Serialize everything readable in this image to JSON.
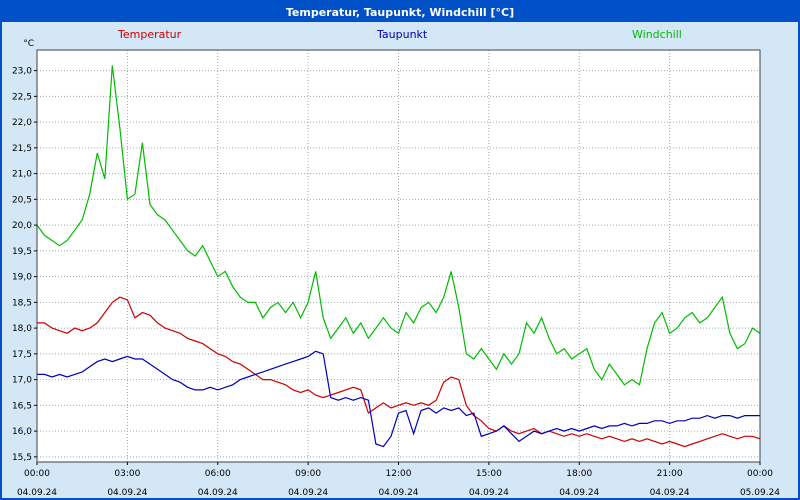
{
  "title": "Temperatur, Taupunkt, Windchill [°C]",
  "colors": {
    "titlebar": "#0050c8",
    "background": "#d3e7f7",
    "grid": "#9aa6b4",
    "temperatur": "#cc0000",
    "taupunkt": "#0000bb",
    "windchill": "#00bb00"
  },
  "chart_data": {
    "type": "line",
    "title": "Temperatur, Taupunkt, Windchill [°C]",
    "ylabel": "°C",
    "xlabel": "",
    "grid": true,
    "legend_position": "top",
    "ylim": [
      15.4,
      23.4
    ],
    "xlim_hours": [
      0,
      24
    ],
    "sample_interval_hours": 0.25,
    "y_ticks": [
      "23,0",
      "22,5",
      "22,0",
      "21,5",
      "21,0",
      "20,5",
      "20,0",
      "19,5",
      "19,0",
      "18,5",
      "18,0",
      "17,5",
      "17,0",
      "16,5",
      "16,0",
      "15,5"
    ],
    "x_ticks": [
      "00:00",
      "03:00",
      "06:00",
      "09:00",
      "12:00",
      "15:00",
      "18:00",
      "21:00",
      "00:00"
    ],
    "x_dates": [
      "04.09.24",
      "04.09.24",
      "04.09.24",
      "04.09.24",
      "04.09.24",
      "04.09.24",
      "04.09.24",
      "04.09.24",
      "05.09.24"
    ],
    "series": [
      {
        "name": "Temperatur",
        "color": "#cc0000",
        "values": [
          18.1,
          18.1,
          18.0,
          17.95,
          17.9,
          18.0,
          17.95,
          18.0,
          18.1,
          18.3,
          18.5,
          18.6,
          18.55,
          18.2,
          18.3,
          18.25,
          18.1,
          18.0,
          17.95,
          17.9,
          17.8,
          17.75,
          17.7,
          17.6,
          17.5,
          17.45,
          17.35,
          17.3,
          17.2,
          17.1,
          17.0,
          17.0,
          16.95,
          16.9,
          16.8,
          16.75,
          16.8,
          16.7,
          16.65,
          16.7,
          16.75,
          16.8,
          16.85,
          16.8,
          16.35,
          16.45,
          16.55,
          16.45,
          16.5,
          16.55,
          16.5,
          16.55,
          16.5,
          16.6,
          16.95,
          17.05,
          17.0,
          16.5,
          16.3,
          16.2,
          16.05,
          16.0,
          16.1,
          16.0,
          15.95,
          16.0,
          16.05,
          15.95,
          16.0,
          15.95,
          15.9,
          15.95,
          15.9,
          15.95,
          15.9,
          15.85,
          15.9,
          15.85,
          15.8,
          15.85,
          15.8,
          15.85,
          15.8,
          15.75,
          15.8,
          15.75,
          15.7,
          15.75,
          15.8,
          15.85,
          15.9,
          15.95,
          15.9,
          15.85,
          15.9,
          15.9,
          15.85
        ]
      },
      {
        "name": "Taupunkt",
        "color": "#0000bb",
        "values": [
          17.1,
          17.1,
          17.05,
          17.1,
          17.05,
          17.1,
          17.15,
          17.25,
          17.35,
          17.4,
          17.35,
          17.4,
          17.45,
          17.4,
          17.4,
          17.3,
          17.2,
          17.1,
          17.0,
          16.95,
          16.85,
          16.8,
          16.8,
          16.85,
          16.8,
          16.85,
          16.9,
          17.0,
          17.05,
          17.1,
          17.15,
          17.2,
          17.25,
          17.3,
          17.35,
          17.4,
          17.45,
          17.55,
          17.5,
          16.65,
          16.6,
          16.65,
          16.6,
          16.65,
          16.6,
          15.75,
          15.7,
          15.9,
          16.35,
          16.4,
          15.95,
          16.4,
          16.45,
          16.35,
          16.45,
          16.4,
          16.45,
          16.3,
          16.35,
          15.9,
          15.95,
          16.0,
          16.1,
          15.95,
          15.8,
          15.9,
          16.0,
          15.95,
          16.0,
          16.05,
          16.0,
          16.05,
          16.0,
          16.05,
          16.1,
          16.05,
          16.1,
          16.1,
          16.15,
          16.1,
          16.15,
          16.15,
          16.2,
          16.2,
          16.15,
          16.2,
          16.2,
          16.25,
          16.25,
          16.3,
          16.25,
          16.3,
          16.3,
          16.25,
          16.3,
          16.3,
          16.3
        ]
      },
      {
        "name": "Windchill",
        "color": "#00bb00",
        "values": [
          20.0,
          19.8,
          19.7,
          19.6,
          19.7,
          19.9,
          20.1,
          20.6,
          21.4,
          20.9,
          23.1,
          21.9,
          20.5,
          20.6,
          21.6,
          20.4,
          20.2,
          20.1,
          19.9,
          19.7,
          19.5,
          19.4,
          19.6,
          19.3,
          19.0,
          19.1,
          18.8,
          18.6,
          18.5,
          18.5,
          18.2,
          18.4,
          18.5,
          18.3,
          18.5,
          18.2,
          18.5,
          19.1,
          18.2,
          17.8,
          18.0,
          18.2,
          17.9,
          18.1,
          17.8,
          18.0,
          18.2,
          18.0,
          17.9,
          18.3,
          18.1,
          18.4,
          18.5,
          18.3,
          18.6,
          19.1,
          18.4,
          17.5,
          17.4,
          17.6,
          17.4,
          17.2,
          17.5,
          17.3,
          17.5,
          18.1,
          17.9,
          18.2,
          17.8,
          17.5,
          17.6,
          17.4,
          17.5,
          17.6,
          17.2,
          17.0,
          17.3,
          17.1,
          16.9,
          17.0,
          16.9,
          17.6,
          18.1,
          18.3,
          17.9,
          18.0,
          18.2,
          18.3,
          18.1,
          18.2,
          18.4,
          18.6,
          17.9,
          17.6,
          17.7,
          18.0,
          17.9
        ]
      }
    ]
  }
}
